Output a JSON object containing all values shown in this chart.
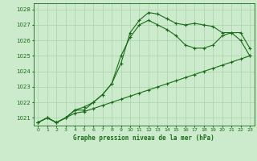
{
  "title": "Graphe pression niveau de la mer (hPa)",
  "bg_color": "#cceacc",
  "grid_color": "#aad4aa",
  "line_color": "#1a6b1a",
  "marker": "+",
  "xlim": [
    -0.5,
    23.5
  ],
  "ylim": [
    1020.5,
    1028.4
  ],
  "xticks": [
    0,
    1,
    2,
    3,
    4,
    5,
    6,
    7,
    8,
    9,
    10,
    11,
    12,
    13,
    14,
    15,
    16,
    17,
    18,
    19,
    20,
    21,
    22,
    23
  ],
  "yticks": [
    1021,
    1022,
    1023,
    1024,
    1025,
    1026,
    1027,
    1028
  ],
  "s1": [
    1020.7,
    1021.0,
    1020.7,
    1021.0,
    1021.3,
    1021.4,
    1021.6,
    1021.8,
    1022.0,
    1022.2,
    1022.4,
    1022.6,
    1022.8,
    1023.0,
    1023.2,
    1023.4,
    1023.6,
    1023.8,
    1024.0,
    1024.2,
    1024.4,
    1024.6,
    1024.8,
    1025.0
  ],
  "s2": [
    1020.7,
    1021.0,
    1020.7,
    1021.0,
    1021.5,
    1021.7,
    1022.0,
    1022.5,
    1023.2,
    1024.5,
    1026.5,
    1027.3,
    1027.8,
    1027.7,
    1027.4,
    1027.1,
    1027.0,
    1027.1,
    1027.0,
    1026.9,
    1026.5,
    1026.5,
    1026.0,
    1025.0
  ],
  "s3": [
    1020.7,
    1021.0,
    1020.7,
    1021.0,
    1021.5,
    1021.5,
    1022.0,
    1022.5,
    1023.2,
    1025.0,
    1026.2,
    1027.0,
    1027.3,
    1027.0,
    1026.7,
    1026.3,
    1025.7,
    1025.5,
    1025.5,
    1025.7,
    1026.3,
    1026.5,
    1026.5,
    1025.5
  ]
}
